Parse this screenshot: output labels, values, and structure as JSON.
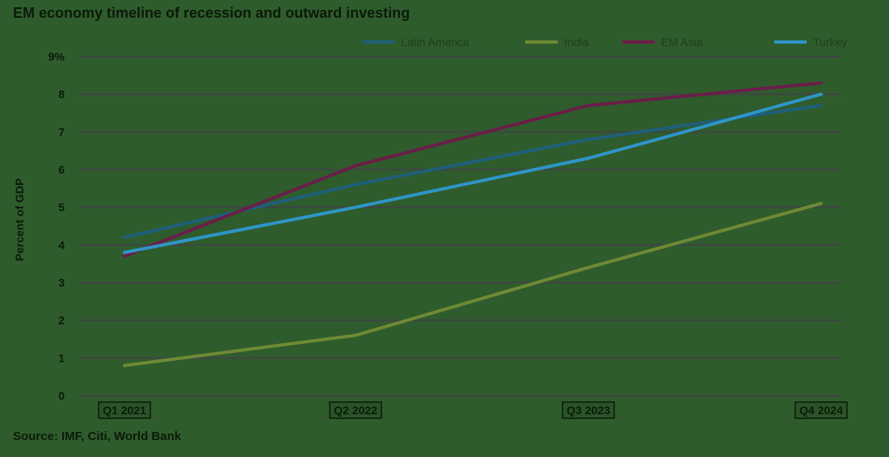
{
  "title": "EM economy timeline of recession and outward investing",
  "source": "Source: IMF, Citi, World Bank",
  "chart_data": {
    "type": "line",
    "title": "EM economy timeline of recession and outward investing",
    "ylabel": "Percent of GDP",
    "xlabel": "",
    "categories": [
      "Q1 2021",
      "Q2 2022",
      "Q3 2023",
      "Q4 2024"
    ],
    "ylim": [
      0,
      9
    ],
    "yticks": [
      "0",
      "1",
      "2",
      "3",
      "4",
      "5",
      "6",
      "7",
      "8",
      "9%"
    ],
    "grid": true,
    "legend": "top",
    "series": [
      {
        "name": "Latin America",
        "color": "#1f5f7a",
        "values": [
          4.2,
          5.6,
          6.8,
          7.7
        ]
      },
      {
        "name": "India",
        "color": "#6f8a35",
        "values": [
          0.8,
          1.6,
          3.4,
          5.1
        ]
      },
      {
        "name": "EM Asia",
        "color": "#6b1d4a",
        "values": [
          3.7,
          6.1,
          7.7,
          8.3
        ]
      },
      {
        "name": "Turkey",
        "color": "#2f95c8",
        "values": [
          3.8,
          5.0,
          6.3,
          8.0
        ]
      }
    ]
  }
}
